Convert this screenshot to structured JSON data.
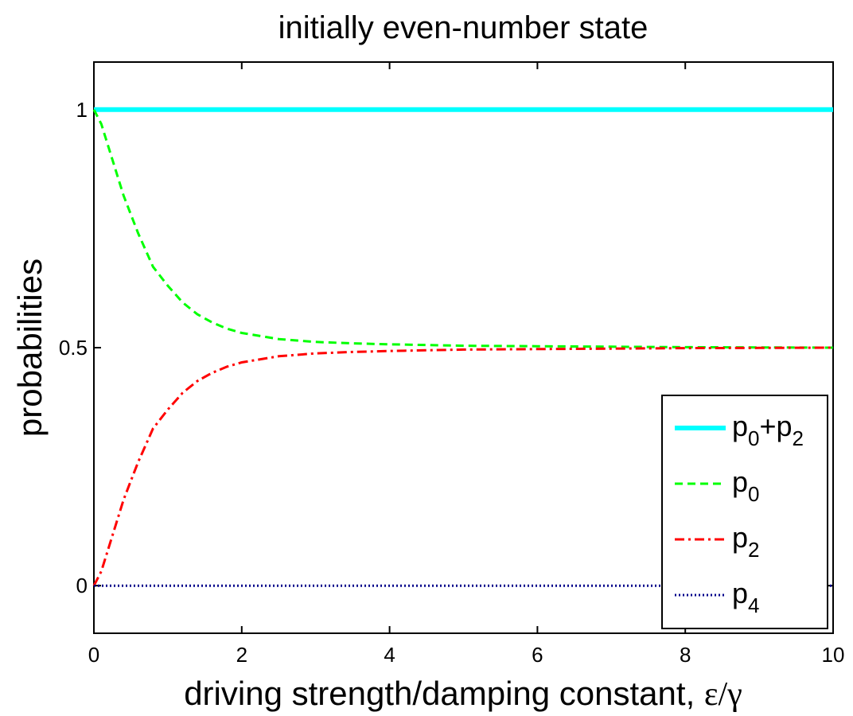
{
  "chart_data": {
    "type": "line",
    "title": "initially even-number state",
    "xlabel_text": "driving strength/damping constant, ",
    "xlabel_symbols": "ε/γ",
    "ylabel": "probabilities",
    "xlim": [
      0,
      10
    ],
    "ylim": [
      -0.1,
      1.1
    ],
    "xticks": [
      0,
      2,
      4,
      6,
      8,
      10
    ],
    "xtick_labels": [
      "0",
      "2",
      "4",
      "6",
      "8",
      "10"
    ],
    "yticks": [
      0,
      0.5,
      1
    ],
    "ytick_labels": [
      "0",
      "0.5",
      "1"
    ],
    "legend_position": "bottom-right",
    "series": [
      {
        "name_main": "p",
        "name_sub": "0",
        "name_mid": "+p",
        "name_sub2": "2",
        "color": "#00FFFF",
        "style": "solid",
        "x": [
          0,
          0.5,
          1,
          1.5,
          2,
          2.5,
          3,
          4,
          5,
          6,
          7,
          8,
          9,
          10
        ],
        "y": [
          1,
          1,
          1,
          1,
          1,
          1,
          1,
          1,
          1,
          1,
          1,
          1,
          1,
          1
        ]
      },
      {
        "name_main": "p",
        "name_sub": "0",
        "color": "#00FF00",
        "style": "dashed",
        "x": [
          0,
          0.1,
          0.2,
          0.3,
          0.4,
          0.5,
          0.6,
          0.7,
          0.8,
          1.0,
          1.2,
          1.4,
          1.6,
          1.8,
          2.0,
          2.5,
          3.0,
          3.5,
          4.0,
          5.0,
          6.0,
          7.0,
          8.0,
          9.0,
          10.0
        ],
        "y": [
          1.0,
          0.97,
          0.92,
          0.87,
          0.82,
          0.78,
          0.74,
          0.705,
          0.67,
          0.63,
          0.595,
          0.57,
          0.553,
          0.54,
          0.531,
          0.518,
          0.512,
          0.509,
          0.507,
          0.504,
          0.503,
          0.502,
          0.501,
          0.5005,
          0.5
        ]
      },
      {
        "name_main": "p",
        "name_sub": "2",
        "color": "#FF0000",
        "style": "dashdot",
        "x": [
          0,
          0.1,
          0.2,
          0.3,
          0.4,
          0.5,
          0.6,
          0.7,
          0.8,
          1.0,
          1.2,
          1.4,
          1.6,
          1.8,
          2.0,
          2.5,
          3.0,
          3.5,
          4.0,
          5.0,
          6.0,
          7.0,
          8.0,
          9.0,
          10.0
        ],
        "y": [
          0.0,
          0.03,
          0.08,
          0.13,
          0.18,
          0.22,
          0.26,
          0.295,
          0.33,
          0.37,
          0.405,
          0.43,
          0.447,
          0.46,
          0.469,
          0.482,
          0.488,
          0.491,
          0.493,
          0.496,
          0.497,
          0.498,
          0.499,
          0.4995,
          0.5
        ]
      },
      {
        "name_main": "p",
        "name_sub": "4",
        "color": "#00008B",
        "style": "dotted",
        "x": [
          0,
          2,
          4,
          6,
          8,
          10
        ],
        "y": [
          0,
          0,
          0,
          0,
          0,
          0
        ]
      }
    ]
  }
}
